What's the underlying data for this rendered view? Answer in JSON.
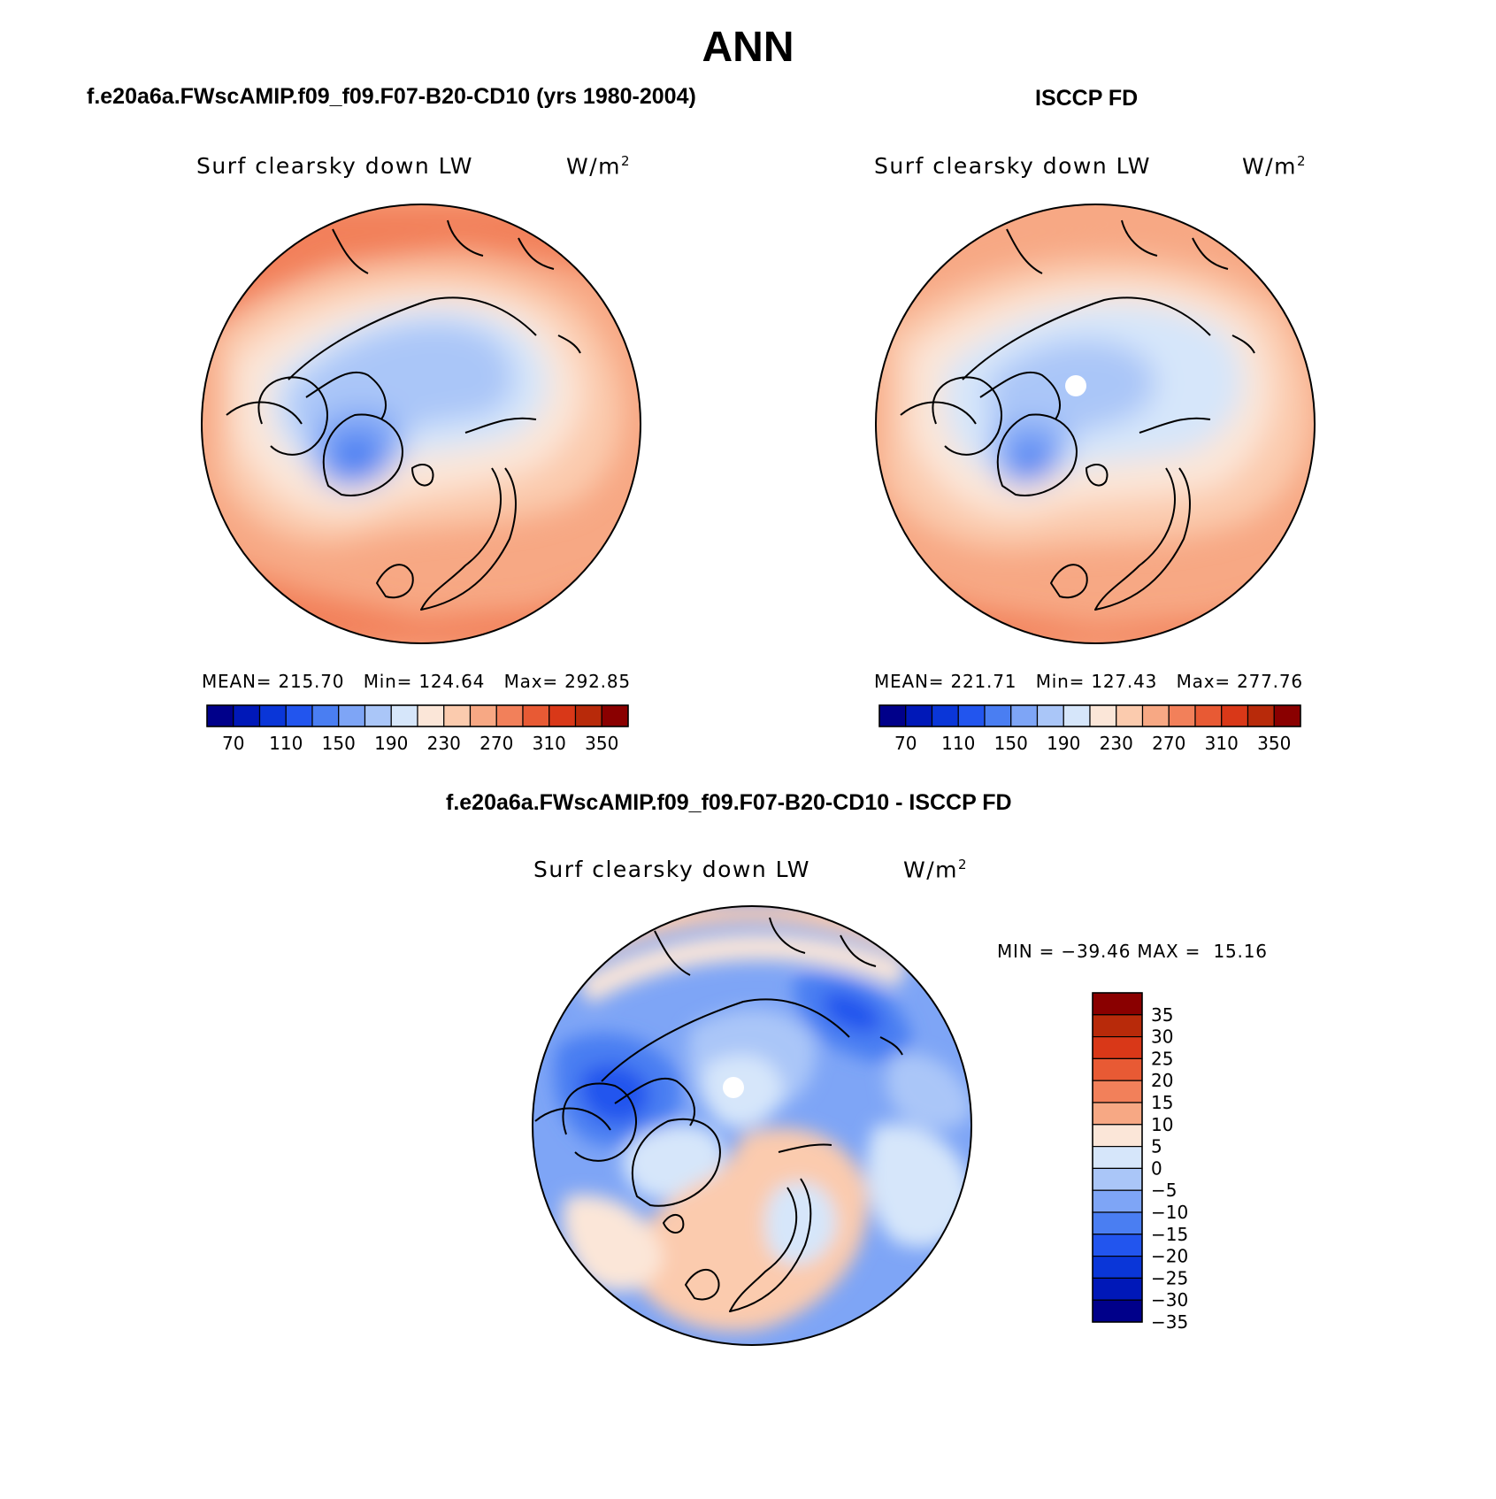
{
  "title": "ANN",
  "panels": [
    {
      "case_title": "f.e20a6a.FWscAMIP.f09_f09.F07-B20-CD10 (yrs 1980-2004)",
      "variable": "Surf clearsky down LW",
      "units": "W/m",
      "units_exp": "2",
      "stats": {
        "mean_label": "MEAN=",
        "mean": "215.70",
        "min_label": "Min=",
        "min": "124.64",
        "max_label": "Max=",
        "max": "292.85"
      }
    },
    {
      "case_title": "ISCCP FD",
      "variable": "Surf clearsky down LW",
      "units": "W/m",
      "units_exp": "2",
      "stats": {
        "mean_label": "MEAN=",
        "mean": "221.71",
        "min_label": "Min=",
        "min": "127.43",
        "max_label": "Max=",
        "max": "277.76"
      }
    },
    {
      "case_title": "f.e20a6a.FWscAMIP.f09_f09.F07-B20-CD10 - ISCCP FD",
      "variable": "Surf clearsky down LW",
      "units": "W/m",
      "units_exp": "2",
      "stats": {
        "min_label": "MIN =",
        "min": "−39.46",
        "max_label": "MAX =",
        "max": "15.16"
      }
    }
  ],
  "abs_colorbar": {
    "colors": [
      "#00008a",
      "#0018b8",
      "#0a36d8",
      "#2255ee",
      "#4a7ef2",
      "#7ea5f6",
      "#aac6f8",
      "#d6e6fa",
      "#fbe6d8",
      "#fbcbae",
      "#f7a884",
      "#f2805a",
      "#e85a34",
      "#d93818",
      "#b82a0a",
      "#8a0000"
    ],
    "labels": [
      "70",
      "110",
      "150",
      "190",
      "230",
      "270",
      "310",
      "350"
    ]
  },
  "diff_colorbar": {
    "colors": [
      "#8a0000",
      "#b82a0a",
      "#d93818",
      "#e85a34",
      "#f2805a",
      "#f7a884",
      "#fbe6d8",
      "#d6e6fa",
      "#aac6f8",
      "#7ea5f6",
      "#4a7ef2",
      "#2255ee",
      "#0a36d8",
      "#0018b8",
      "#00008a"
    ],
    "labels": [
      "35",
      "30",
      "25",
      "20",
      "15",
      "10",
      "5",
      "0",
      "−5",
      "−10",
      "−15",
      "−20",
      "−25",
      "−30",
      "−35"
    ]
  },
  "chart_data": {
    "type": "heatmap",
    "projection": "north polar stereographic",
    "season": "ANN",
    "maps": [
      {
        "name": "f.e20a6a.FWscAMIP.f09_f09.F07-B20-CD10 (yrs 1980-2004)",
        "mean": 215.7,
        "min": 124.64,
        "max": 292.85
      },
      {
        "name": "ISCCP FD",
        "mean": 221.71,
        "min": 127.43,
        "max": 277.76
      },
      {
        "name": "f.e20a6a.FWscAMIP.f09_f09.F07-B20-CD10 - ISCCP FD",
        "min": -39.46,
        "max": 15.16
      }
    ],
    "abs_levels": [
      70,
      110,
      150,
      190,
      230,
      270,
      310,
      350
    ],
    "diff_levels": [
      -35,
      -30,
      -25,
      -20,
      -15,
      -10,
      -5,
      0,
      5,
      10,
      15,
      20,
      25,
      30,
      35
    ]
  }
}
